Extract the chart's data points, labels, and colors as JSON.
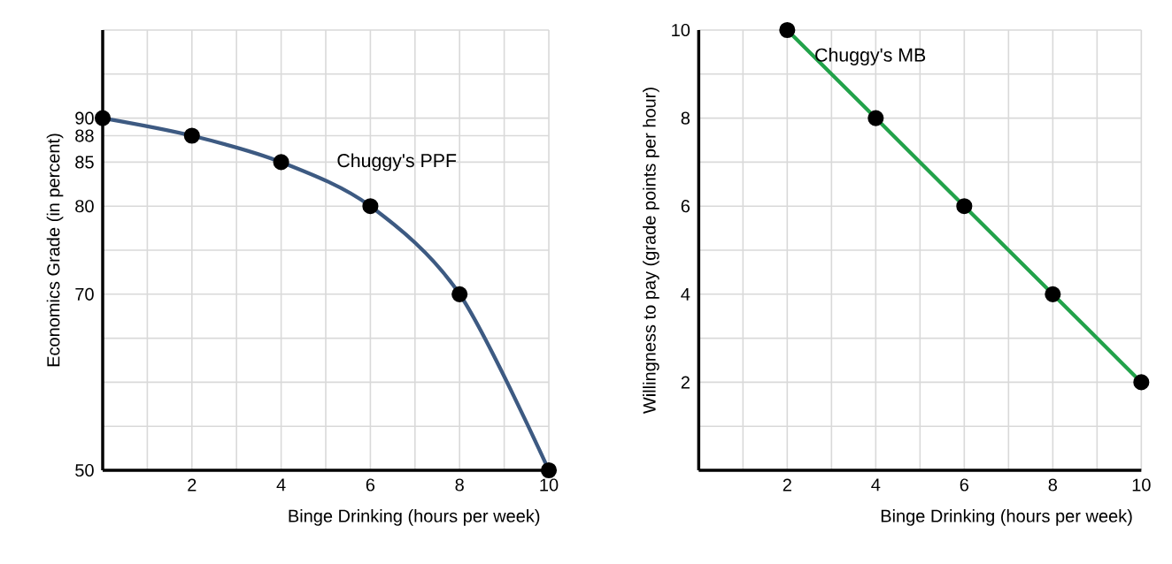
{
  "chart_data": [
    {
      "type": "line",
      "xlabel": "Binge Drinking (hours per week)",
      "ylabel": "Economics Grade (in percent)",
      "xlim": [
        0,
        10
      ],
      "ylim": [
        50,
        100
      ],
      "xticks": [
        {
          "value": 1,
          "label": null
        },
        2,
        {
          "value": 3,
          "label": null
        },
        4,
        {
          "value": 5,
          "label": null
        },
        6,
        {
          "value": 7,
          "label": null
        },
        8,
        {
          "value": 9,
          "label": null
        },
        10
      ],
      "yticks": [
        50,
        {
          "value": 55,
          "label": null
        },
        {
          "value": 60,
          "label": null
        },
        {
          "value": 65,
          "label": null
        },
        70,
        {
          "value": 75,
          "label": null
        },
        80,
        85,
        88,
        90,
        {
          "value": 95,
          "label": null
        },
        {
          "value": 100,
          "label": null
        }
      ],
      "grid": true,
      "marker": "circle",
      "line_style": "solid",
      "series": [
        {
          "name": "Chuggy's PPF",
          "color": "#3d5a82",
          "x": [
            0,
            2,
            4,
            6,
            8,
            10
          ],
          "values": [
            90,
            88,
            85,
            80,
            70,
            50
          ]
        }
      ]
    },
    {
      "type": "line",
      "xlabel": "Binge Drinking (hours per week)",
      "ylabel": "Willingness to pay (grade points per hour)",
      "xlim": [
        0,
        10
      ],
      "ylim": [
        0,
        10
      ],
      "xticks": [
        {
          "value": 1,
          "label": null
        },
        2,
        {
          "value": 3,
          "label": null
        },
        4,
        {
          "value": 5,
          "label": null
        },
        6,
        {
          "value": 7,
          "label": null
        },
        8,
        {
          "value": 9,
          "label": null
        },
        10
      ],
      "yticks": [
        {
          "value": 1,
          "label": null
        },
        2,
        {
          "value": 3,
          "label": null
        },
        4,
        {
          "value": 5,
          "label": null
        },
        6,
        {
          "value": 7,
          "label": null
        },
        8,
        {
          "value": 9,
          "label": null
        },
        10
      ],
      "grid": true,
      "marker": "circle",
      "line_style": "solid",
      "series": [
        {
          "name": "Chuggy's MB",
          "color": "#22a24a",
          "x": [
            2,
            4,
            6,
            8,
            10
          ],
          "values": [
            10,
            8,
            6,
            4,
            2
          ]
        }
      ]
    }
  ]
}
